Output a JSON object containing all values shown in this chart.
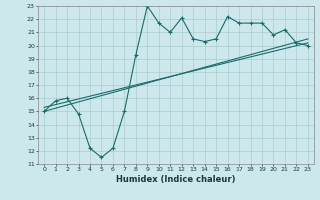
{
  "xlabel": "Humidex (Indice chaleur)",
  "ylabel": "",
  "background_color": "#cce8ec",
  "grid_color": "#aacccc",
  "line_color": "#1a6b6b",
  "xlim": [
    -0.5,
    23.5
  ],
  "ylim": [
    11,
    23
  ],
  "xticks": [
    0,
    1,
    2,
    3,
    4,
    5,
    6,
    7,
    8,
    9,
    10,
    11,
    12,
    13,
    14,
    15,
    16,
    17,
    18,
    19,
    20,
    21,
    22,
    23
  ],
  "yticks": [
    11,
    12,
    13,
    14,
    15,
    16,
    17,
    18,
    19,
    20,
    21,
    22,
    23
  ],
  "series1_x": [
    0,
    1,
    2,
    3,
    4,
    5,
    6,
    7,
    8,
    9,
    10,
    11,
    12,
    13,
    14,
    15,
    16,
    17,
    18,
    19,
    20,
    21,
    22,
    23
  ],
  "series1_y": [
    15.0,
    15.8,
    16.0,
    14.8,
    12.2,
    11.5,
    12.2,
    15.0,
    19.3,
    23.0,
    21.7,
    21.0,
    22.1,
    20.5,
    20.3,
    20.5,
    22.2,
    21.7,
    21.7,
    21.7,
    20.8,
    21.2,
    20.2,
    20.0
  ],
  "series2_x": [
    0,
    23
  ],
  "series2_y": [
    15.0,
    20.5
  ],
  "series3_x": [
    0,
    23
  ],
  "series3_y": [
    15.3,
    20.2
  ],
  "xlabel_fontsize": 6,
  "tick_fontsize": 4.5
}
